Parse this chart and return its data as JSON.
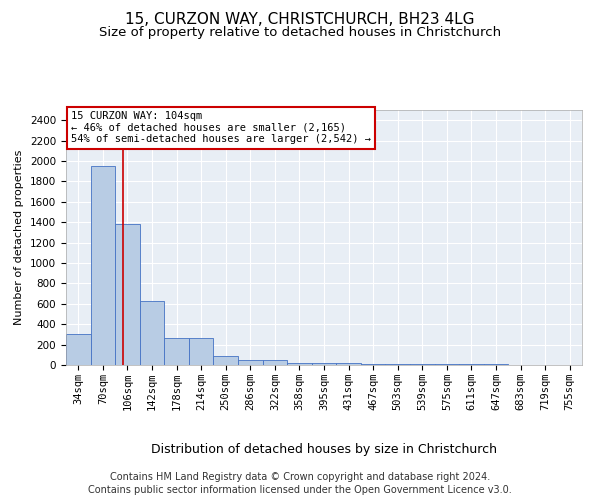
{
  "title1": "15, CURZON WAY, CHRISTCHURCH, BH23 4LG",
  "title2": "Size of property relative to detached houses in Christchurch",
  "xlabel": "Distribution of detached houses by size in Christchurch",
  "ylabel": "Number of detached properties",
  "categories": [
    "34sqm",
    "70sqm",
    "106sqm",
    "142sqm",
    "178sqm",
    "214sqm",
    "250sqm",
    "286sqm",
    "322sqm",
    "358sqm",
    "395sqm",
    "431sqm",
    "467sqm",
    "503sqm",
    "539sqm",
    "575sqm",
    "611sqm",
    "647sqm",
    "683sqm",
    "719sqm",
    "755sqm"
  ],
  "values": [
    300,
    1950,
    1380,
    630,
    265,
    265,
    90,
    50,
    50,
    20,
    20,
    20,
    10,
    10,
    5,
    5,
    5,
    5,
    2,
    2,
    2
  ],
  "bar_color": "#b8cce4",
  "bar_edge_color": "#4472c4",
  "bar_width": 1.0,
  "annotation_line1": "15 CURZON WAY: 104sqm",
  "annotation_line2": "← 46% of detached houses are smaller (2,165)",
  "annotation_line3": "54% of semi-detached houses are larger (2,542) →",
  "ylim": [
    0,
    2500
  ],
  "yticks": [
    0,
    200,
    400,
    600,
    800,
    1000,
    1200,
    1400,
    1600,
    1800,
    2000,
    2200,
    2400
  ],
  "footer1": "Contains HM Land Registry data © Crown copyright and database right 2024.",
  "footer2": "Contains public sector information licensed under the Open Government Licence v3.0.",
  "bg_color": "#ffffff",
  "plot_bg_color": "#e8eef5",
  "grid_color": "#ffffff",
  "annotation_box_color": "#ffffff",
  "annotation_box_edge": "#cc0000",
  "redline_color": "#cc0000",
  "title1_fontsize": 11,
  "title2_fontsize": 9.5,
  "xlabel_fontsize": 9,
  "ylabel_fontsize": 8,
  "tick_fontsize": 7.5,
  "footer_fontsize": 7,
  "annot_fontsize": 7.5
}
